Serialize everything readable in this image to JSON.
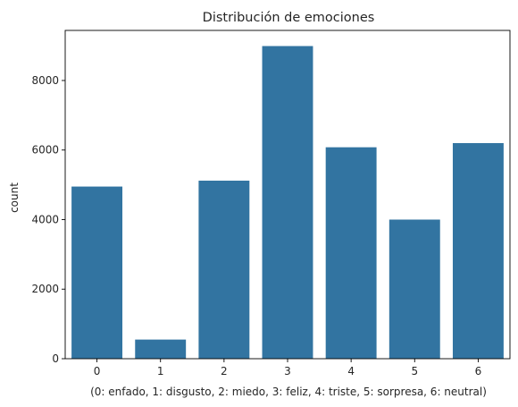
{
  "chart_data": {
    "type": "bar",
    "title": "Distribución de emociones",
    "xlabel": "(0: enfado, 1: disgusto, 2: miedo, 3: feliz, 4: triste, 5: sorpresa, 6: neutral)",
    "ylabel": "count",
    "categories": [
      "0",
      "1",
      "2",
      "3",
      "4",
      "5",
      "6"
    ],
    "values": [
      4950,
      550,
      5120,
      8990,
      6080,
      4000,
      6200
    ],
    "ylim": [
      0,
      9440
    ],
    "yticks": [
      0,
      2000,
      4000,
      6000,
      8000
    ],
    "bar_color": "#3274a1",
    "grid": false,
    "legend": "none"
  }
}
